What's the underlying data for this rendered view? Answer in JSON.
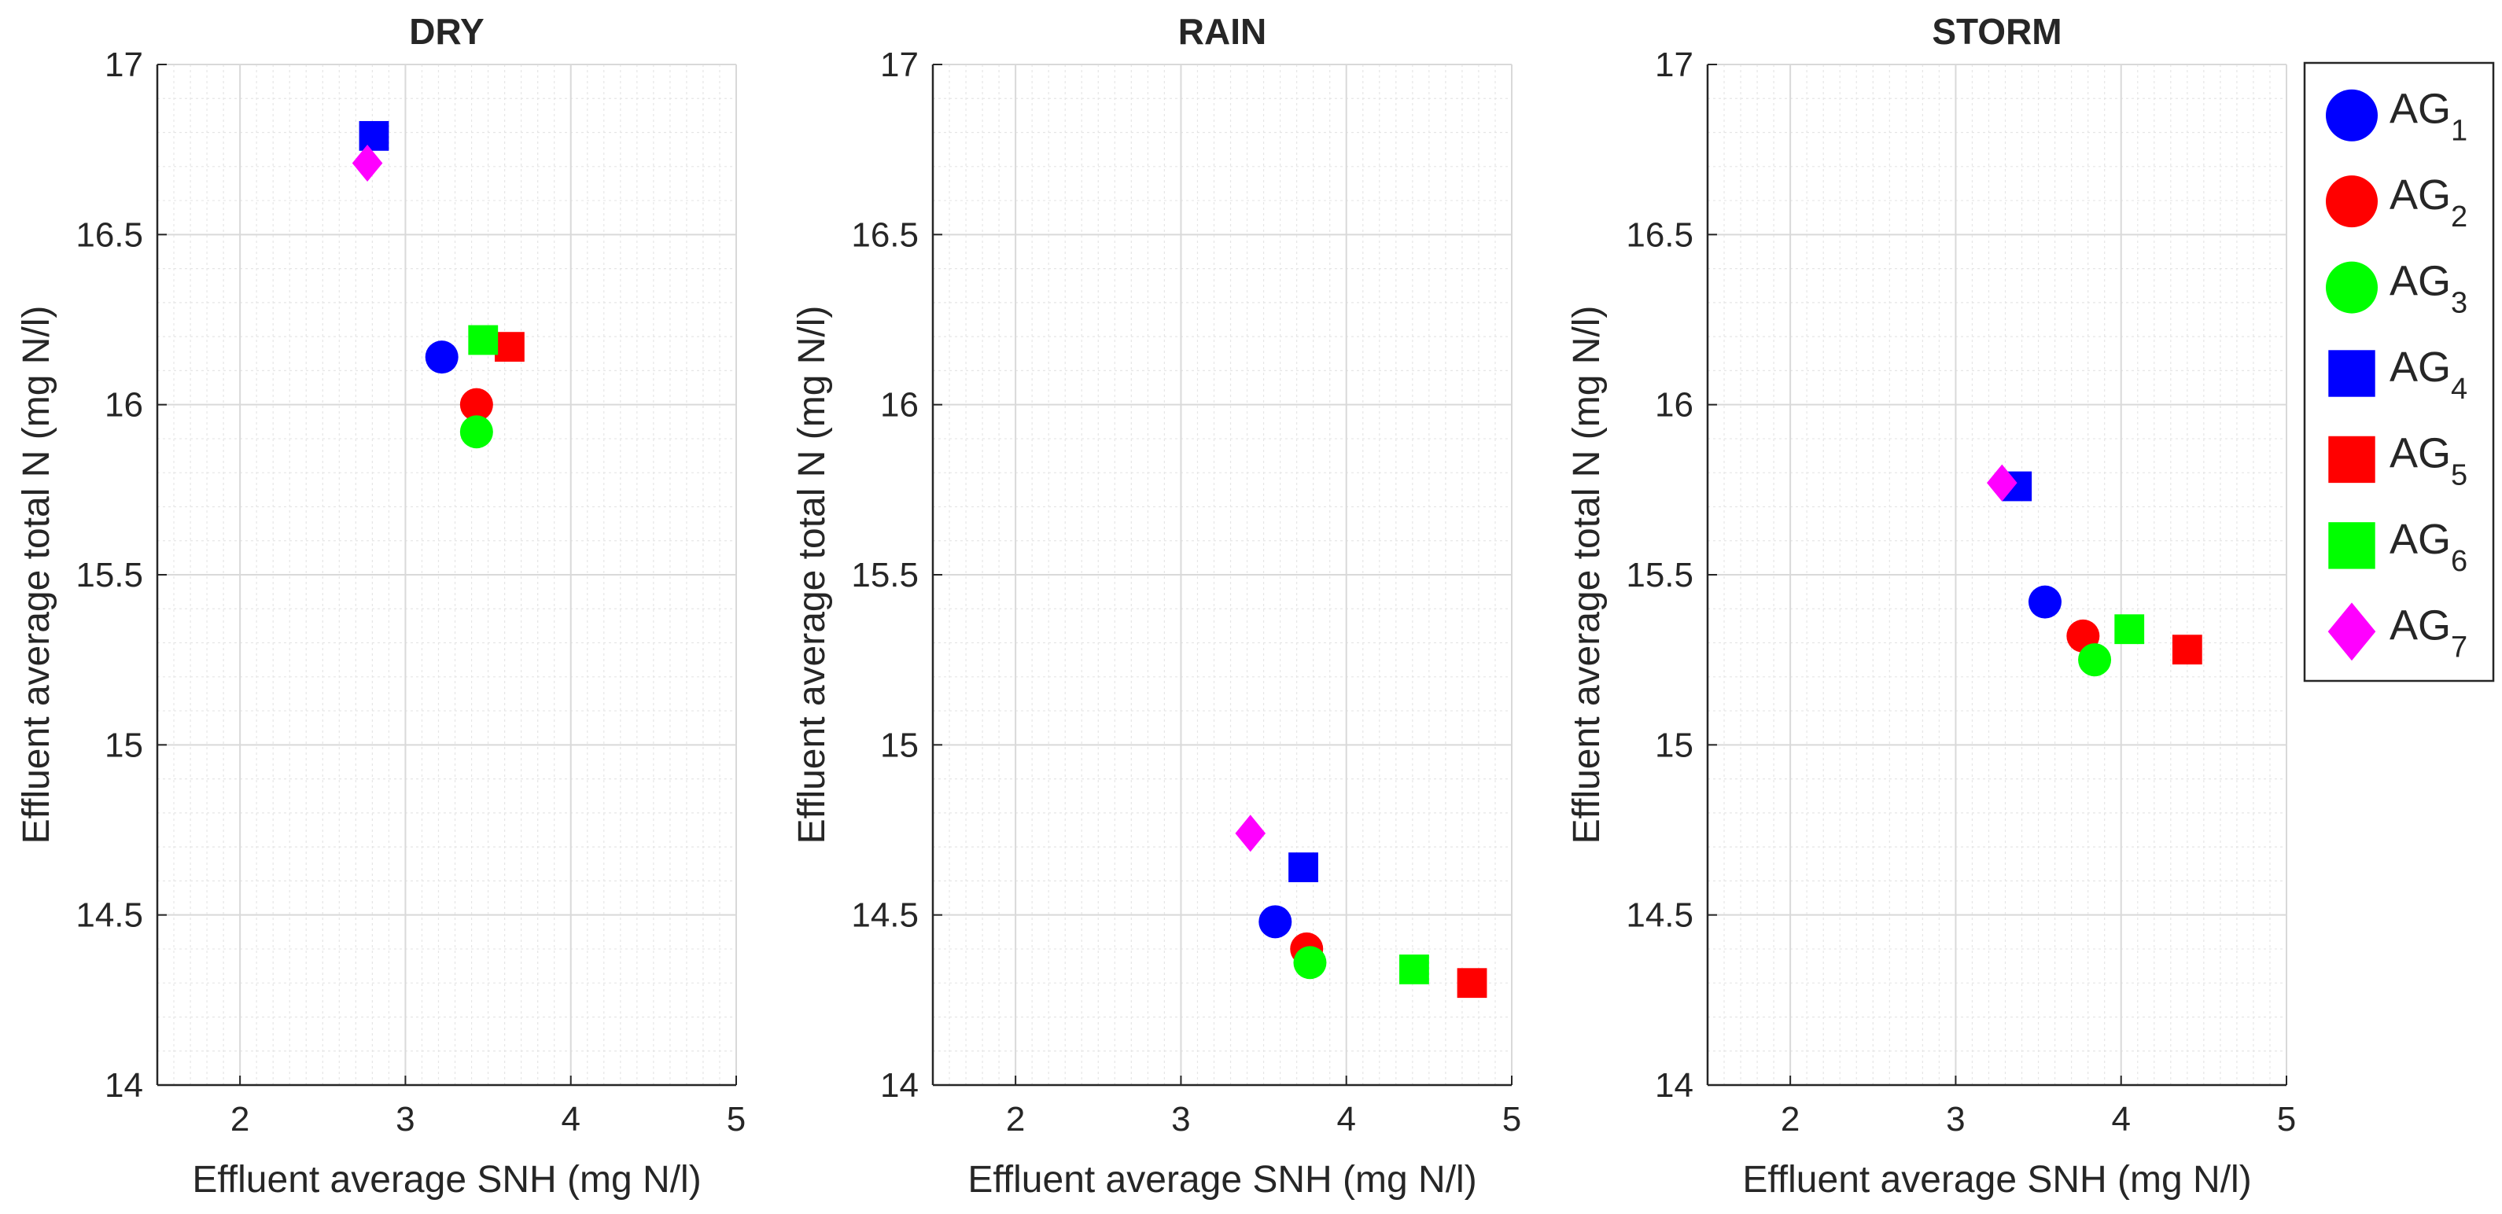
{
  "figure": {
    "background": "#ffffff"
  },
  "chart_data": [
    {
      "type": "scatter",
      "title": "DRY",
      "xlabel": "Effluent average SNH (mg N/l)",
      "ylabel": "Effluent average total N (mg N/l)",
      "xlim": [
        1.5,
        5
      ],
      "ylim": [
        14,
        17
      ],
      "xticks": [
        "2",
        "3",
        "4",
        "5"
      ],
      "yticks": [
        "14",
        "14.5",
        "15",
        "15.5",
        "16",
        "16.5",
        "17"
      ],
      "grid": true,
      "minor_grid": true,
      "points": [
        {
          "series": "AG1",
          "x": 3.22,
          "y": 16.14
        },
        {
          "series": "AG2",
          "x": 3.43,
          "y": 16.0
        },
        {
          "series": "AG3",
          "x": 3.43,
          "y": 15.92
        },
        {
          "series": "AG4",
          "x": 2.81,
          "y": 16.79
        },
        {
          "series": "AG5",
          "x": 3.63,
          "y": 16.17
        },
        {
          "series": "AG6",
          "x": 3.47,
          "y": 16.19
        },
        {
          "series": "AG7",
          "x": 2.77,
          "y": 16.71
        }
      ]
    },
    {
      "type": "scatter",
      "title": "RAIN",
      "xlabel": "Effluent average SNH (mg N/l)",
      "ylabel": "Effluent average total N (mg N/l)",
      "xlim": [
        1.5,
        5
      ],
      "ylim": [
        14,
        17
      ],
      "xticks": [
        "2",
        "3",
        "4",
        "5"
      ],
      "yticks": [
        "14",
        "14.5",
        "15",
        "15.5",
        "16",
        "16.5",
        "17"
      ],
      "grid": true,
      "minor_grid": true,
      "points": [
        {
          "series": "AG1",
          "x": 3.57,
          "y": 14.48
        },
        {
          "series": "AG2",
          "x": 3.76,
          "y": 14.4
        },
        {
          "series": "AG3",
          "x": 3.78,
          "y": 14.36
        },
        {
          "series": "AG4",
          "x": 3.74,
          "y": 14.64
        },
        {
          "series": "AG5",
          "x": 4.76,
          "y": 14.3
        },
        {
          "series": "AG6",
          "x": 4.41,
          "y": 14.34
        },
        {
          "series": "AG7",
          "x": 3.42,
          "y": 14.74
        }
      ]
    },
    {
      "type": "scatter",
      "title": "STORM",
      "xlabel": "Effluent average SNH (mg N/l)",
      "ylabel": "Effluent average total N (mg N/l)",
      "xlim": [
        1.5,
        5
      ],
      "ylim": [
        14,
        17
      ],
      "xticks": [
        "2",
        "3",
        "4",
        "5"
      ],
      "yticks": [
        "14",
        "14.5",
        "15",
        "15.5",
        "16",
        "16.5",
        "17"
      ],
      "grid": true,
      "minor_grid": true,
      "points": [
        {
          "series": "AG1",
          "x": 3.54,
          "y": 15.42
        },
        {
          "series": "AG2",
          "x": 3.77,
          "y": 15.32
        },
        {
          "series": "AG3",
          "x": 3.84,
          "y": 15.25
        },
        {
          "series": "AG4",
          "x": 3.37,
          "y": 15.76
        },
        {
          "series": "AG5",
          "x": 4.4,
          "y": 15.28
        },
        {
          "series": "AG6",
          "x": 4.05,
          "y": 15.34
        },
        {
          "series": "AG7",
          "x": 3.28,
          "y": 15.77
        }
      ]
    }
  ],
  "series_styles": {
    "AG1": {
      "marker": "circle",
      "color": "#0000ff"
    },
    "AG2": {
      "marker": "circle",
      "color": "#ff0000"
    },
    "AG3": {
      "marker": "circle",
      "color": "#00ff00"
    },
    "AG4": {
      "marker": "square",
      "color": "#0000ff"
    },
    "AG5": {
      "marker": "square",
      "color": "#ff0000"
    },
    "AG6": {
      "marker": "square",
      "color": "#00ff00"
    },
    "AG7": {
      "marker": "diamond",
      "color": "#ff00ff"
    }
  },
  "legend": {
    "placement": "right",
    "entries": [
      {
        "series": "AG1",
        "base": "AG",
        "sub": "1"
      },
      {
        "series": "AG2",
        "base": "AG",
        "sub": "2"
      },
      {
        "series": "AG3",
        "base": "AG",
        "sub": "3"
      },
      {
        "series": "AG4",
        "base": "AG",
        "sub": "4"
      },
      {
        "series": "AG5",
        "base": "AG",
        "sub": "5"
      },
      {
        "series": "AG6",
        "base": "AG",
        "sub": "6"
      },
      {
        "series": "AG7",
        "base": "AG",
        "sub": "7"
      }
    ]
  }
}
